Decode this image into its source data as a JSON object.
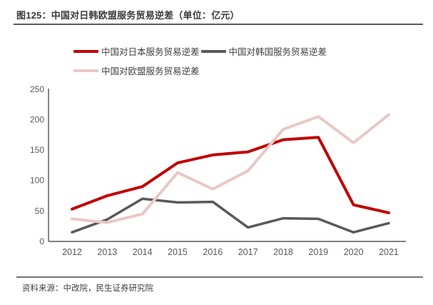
{
  "header": {
    "title": "图125：中国对日韩欧盟服务贸易逆差（单位：亿元）"
  },
  "legend": {
    "items": [
      {
        "label": "中国对日本服务贸易逆差",
        "color": "#c00000"
      },
      {
        "label": "中国对韩国服务贸易逆差",
        "color": "#595959"
      },
      {
        "label": "中国对欧盟服务贸易逆差",
        "color": "#e8c8c6"
      }
    ]
  },
  "footer": {
    "source": "资料来源：中改院，民生证券研究院"
  },
  "colors": {
    "japan_line": "#c00000",
    "korea_line": "#595959",
    "eu_line": "#e8c8c6",
    "axis": "#6e6e6e",
    "tick_label": "#595959"
  },
  "chart_data": {
    "type": "line",
    "title": "图125：中国对日韩欧盟服务贸易逆差（单位：亿元）",
    "unit": "亿元",
    "categories": [
      2012,
      2013,
      2014,
      2015,
      2016,
      2017,
      2018,
      2019,
      2020,
      2021
    ],
    "series": [
      {
        "name": "中国对日本服务贸易逆差",
        "color": "#c00000",
        "values": [
          53,
          75,
          90,
          129,
          142,
          147,
          167,
          171,
          60,
          47
        ]
      },
      {
        "name": "中国对韩国服务贸易逆差",
        "color": "#595959",
        "values": [
          15,
          36,
          70,
          64,
          65,
          23,
          38,
          37,
          15,
          30
        ]
      },
      {
        "name": "中国对欧盟服务贸易逆差",
        "color": "#e8c8c6",
        "values": [
          37,
          31,
          45,
          113,
          86,
          116,
          184,
          205,
          162,
          208
        ]
      }
    ],
    "ylim": [
      0,
      250
    ],
    "ytick_step": 50,
    "yticks": [
      0,
      50,
      100,
      150,
      200,
      250
    ],
    "grid": false,
    "legend_position": "top",
    "xlabel": "",
    "ylabel": ""
  }
}
